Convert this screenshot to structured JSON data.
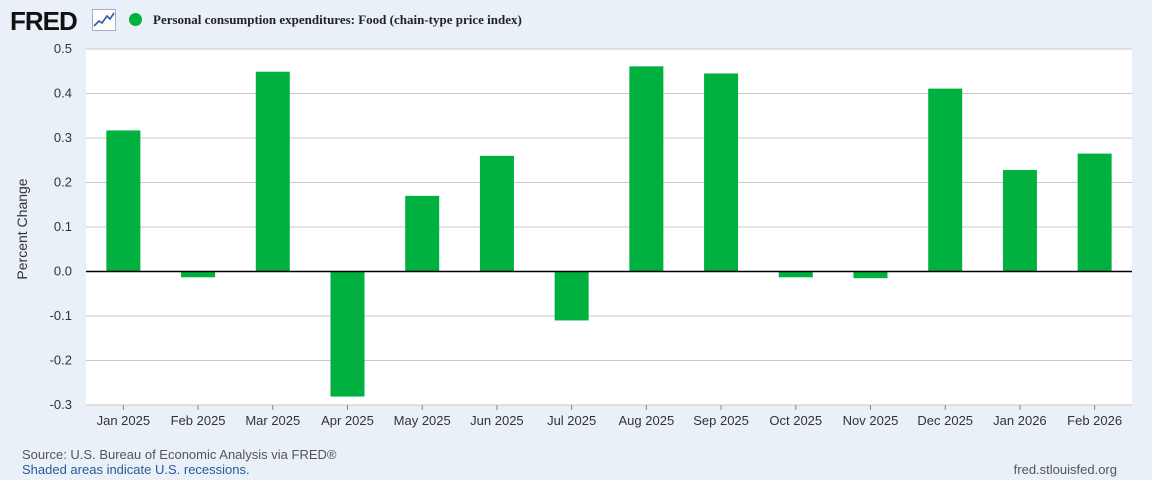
{
  "header": {
    "logo_text": "FRED",
    "series_label": "Personal consumption expenditures: Food (chain-type price index)"
  },
  "colors": {
    "bar": "#00b140",
    "grid": "#c8c8c8",
    "zero_line": "#000000",
    "background": "#e9f0f8",
    "plot_background": "#ffffff"
  },
  "chart_data": {
    "type": "bar",
    "title": "Personal consumption expenditures: Food (chain-type price index)",
    "xlabel": "",
    "ylabel": "Percent Change",
    "ylim": [
      -0.3,
      0.5
    ],
    "yticks": [
      0.5,
      0.4,
      0.3,
      0.2,
      0.1,
      0.0,
      -0.1,
      -0.2,
      -0.3
    ],
    "ytick_labels": [
      "0.5",
      "0.4",
      "0.3",
      "0.2",
      "0.1",
      "0.0",
      "-0.1",
      "-0.2",
      "-0.3"
    ],
    "categories": [
      "Jan 2025",
      "Feb 2025",
      "Mar 2025",
      "Apr 2025",
      "May 2025",
      "Jun 2025",
      "Jul 2025",
      "Aug 2025",
      "Sep 2025",
      "Oct 2025",
      "Nov 2025",
      "Dec 2025",
      "Jan 2026",
      "Feb 2026"
    ],
    "values": [
      0.317,
      -0.013,
      0.449,
      -0.281,
      0.17,
      0.26,
      -0.11,
      0.461,
      0.445,
      -0.013,
      -0.015,
      0.411,
      0.228,
      0.265
    ],
    "grid": true,
    "legend": "top-left"
  },
  "footer": {
    "source": "U.S. Bureau of Economic Analysis via FRED®",
    "recessions_note": "Shaded areas indicate U.S. recessions.",
    "site": "fred.stlouisfed.org"
  }
}
